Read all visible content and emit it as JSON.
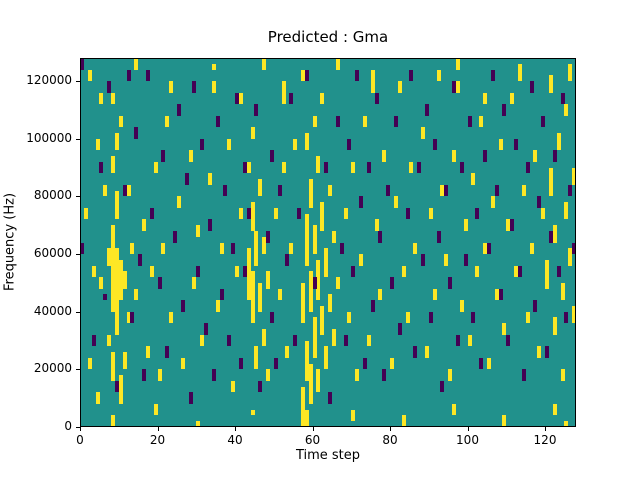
{
  "chart_data": {
    "type": "heatmap",
    "title": "Predicted : Gma",
    "xlabel": "Time step",
    "ylabel": "Frequency (Hz)",
    "xlim": [
      0,
      128
    ],
    "ylim": [
      0,
      128000
    ],
    "x_ticks": [
      0,
      20,
      40,
      60,
      80,
      100,
      120
    ],
    "x_tick_labels": [
      "0",
      "20",
      "40",
      "60",
      "80",
      "100",
      "120"
    ],
    "y_ticks": [
      0,
      20000,
      40000,
      60000,
      80000,
      100000,
      120000
    ],
    "y_tick_labels": [
      "0",
      "20000",
      "40000",
      "60000",
      "80000",
      "100000",
      "120000"
    ],
    "n_cols": 128,
    "n_rows": 64,
    "row_height_hz": 2000,
    "grid": false,
    "legend": "none",
    "colors": {
      "background": "#21918c",
      "high": "#fde725",
      "low": "#440154"
    },
    "cells_high": [
      [
        1,
        36,
        37
      ],
      [
        2,
        10,
        11
      ],
      [
        2,
        60,
        61
      ],
      [
        3,
        26,
        27
      ],
      [
        4,
        4,
        5
      ],
      [
        4,
        48,
        49
      ],
      [
        5,
        24,
        25
      ],
      [
        5,
        56,
        57
      ],
      [
        6,
        40,
        41
      ],
      [
        7,
        14,
        15
      ],
      [
        7,
        28,
        30
      ],
      [
        8,
        0,
        1
      ],
      [
        8,
        8,
        12
      ],
      [
        8,
        20,
        34
      ],
      [
        8,
        44,
        46
      ],
      [
        8,
        56,
        57
      ],
      [
        9,
        16,
        30
      ],
      [
        9,
        36,
        40
      ],
      [
        9,
        48,
        50
      ],
      [
        10,
        4,
        8
      ],
      [
        10,
        22,
        28
      ],
      [
        10,
        52,
        53
      ],
      [
        11,
        10,
        12
      ],
      [
        11,
        24,
        26
      ],
      [
        12,
        18,
        19
      ],
      [
        12,
        40,
        41
      ],
      [
        13,
        30,
        31
      ],
      [
        14,
        22,
        23
      ],
      [
        14,
        62,
        63
      ],
      [
        16,
        34,
        35
      ],
      [
        17,
        12,
        13
      ],
      [
        18,
        26,
        27
      ],
      [
        19,
        2,
        3
      ],
      [
        19,
        44,
        45
      ],
      [
        20,
        8,
        9
      ],
      [
        21,
        30,
        31
      ],
      [
        22,
        52,
        53
      ],
      [
        23,
        18,
        19
      ],
      [
        23,
        58,
        59
      ],
      [
        25,
        38,
        39
      ],
      [
        26,
        10,
        11
      ],
      [
        28,
        46,
        47
      ],
      [
        29,
        24,
        25
      ],
      [
        30,
        0,
        0
      ],
      [
        30,
        33,
        34
      ],
      [
        31,
        14,
        15
      ],
      [
        33,
        42,
        43
      ],
      [
        34,
        58,
        59
      ],
      [
        34,
        62,
        62
      ],
      [
        35,
        20,
        21
      ],
      [
        36,
        30,
        31
      ],
      [
        38,
        48,
        49
      ],
      [
        39,
        6,
        7
      ],
      [
        40,
        26,
        27
      ],
      [
        41,
        36,
        37
      ],
      [
        41,
        56,
        57
      ],
      [
        43,
        22,
        30
      ],
      [
        43,
        44,
        45
      ],
      [
        44,
        2,
        2
      ],
      [
        44,
        18,
        26
      ],
      [
        44,
        34,
        38
      ],
      [
        44,
        50,
        51
      ],
      [
        45,
        10,
        13
      ],
      [
        45,
        28,
        33
      ],
      [
        46,
        20,
        24
      ],
      [
        46,
        40,
        42
      ],
      [
        47,
        14,
        16
      ],
      [
        47,
        30,
        32
      ],
      [
        47,
        62,
        63
      ],
      [
        48,
        8,
        9
      ],
      [
        48,
        24,
        26
      ],
      [
        50,
        36,
        37
      ],
      [
        51,
        22,
        23
      ],
      [
        52,
        44,
        45
      ],
      [
        52,
        56,
        59
      ],
      [
        53,
        12,
        13
      ],
      [
        54,
        30,
        31
      ],
      [
        55,
        48,
        49
      ],
      [
        57,
        0,
        6
      ],
      [
        57,
        18,
        24
      ],
      [
        57,
        60,
        61
      ],
      [
        58,
        0,
        2
      ],
      [
        58,
        8,
        14
      ],
      [
        58,
        28,
        36
      ],
      [
        58,
        48,
        50
      ],
      [
        59,
        4,
        10
      ],
      [
        59,
        20,
        26
      ],
      [
        59,
        38,
        42
      ],
      [
        60,
        12,
        18
      ],
      [
        60,
        30,
        34
      ],
      [
        60,
        52,
        53
      ],
      [
        61,
        6,
        9
      ],
      [
        61,
        22,
        28
      ],
      [
        61,
        44,
        46
      ],
      [
        62,
        16,
        20
      ],
      [
        62,
        34,
        38
      ],
      [
        62,
        56,
        57
      ],
      [
        63,
        10,
        13
      ],
      [
        63,
        26,
        30
      ],
      [
        64,
        20,
        22
      ],
      [
        64,
        40,
        41
      ],
      [
        65,
        14,
        16
      ],
      [
        65,
        32,
        33
      ],
      [
        66,
        24,
        25
      ],
      [
        66,
        62,
        63
      ],
      [
        68,
        36,
        37
      ],
      [
        69,
        18,
        19
      ],
      [
        70,
        1,
        2
      ],
      [
        70,
        44,
        45
      ],
      [
        71,
        8,
        9
      ],
      [
        72,
        28,
        29
      ],
      [
        73,
        52,
        53
      ],
      [
        74,
        14,
        15
      ],
      [
        75,
        58,
        61
      ],
      [
        76,
        34,
        35
      ],
      [
        77,
        22,
        23
      ],
      [
        78,
        46,
        47
      ],
      [
        80,
        10,
        11
      ],
      [
        81,
        38,
        39
      ],
      [
        82,
        58,
        59
      ],
      [
        83,
        0,
        1
      ],
      [
        83,
        26,
        27
      ],
      [
        84,
        18,
        19
      ],
      [
        85,
        44,
        45
      ],
      [
        86,
        30,
        31
      ],
      [
        88,
        50,
        51
      ],
      [
        89,
        12,
        13
      ],
      [
        90,
        36,
        37
      ],
      [
        91,
        22,
        23
      ],
      [
        92,
        60,
        61
      ],
      [
        93,
        40,
        41
      ],
      [
        94,
        28,
        29
      ],
      [
        95,
        8,
        9
      ],
      [
        96,
        2,
        3
      ],
      [
        96,
        46,
        47
      ],
      [
        97,
        58,
        59
      ],
      [
        97,
        62,
        63
      ],
      [
        98,
        20,
        21
      ],
      [
        99,
        34,
        35
      ],
      [
        100,
        14,
        15
      ],
      [
        101,
        42,
        43
      ],
      [
        102,
        26,
        27
      ],
      [
        103,
        52,
        53
      ],
      [
        104,
        30,
        31
      ],
      [
        104,
        56,
        57
      ],
      [
        105,
        10,
        11
      ],
      [
        106,
        38,
        39
      ],
      [
        107,
        22,
        23
      ],
      [
        108,
        48,
        49
      ],
      [
        109,
        0,
        1
      ],
      [
        109,
        16,
        17
      ],
      [
        110,
        34,
        35
      ],
      [
        111,
        56,
        57
      ],
      [
        112,
        26,
        27
      ],
      [
        113,
        60,
        62
      ],
      [
        114,
        40,
        41
      ],
      [
        115,
        18,
        19
      ],
      [
        116,
        30,
        31
      ],
      [
        117,
        46,
        47
      ],
      [
        118,
        12,
        13
      ],
      [
        119,
        36,
        37
      ],
      [
        120,
        24,
        28
      ],
      [
        121,
        40,
        44
      ],
      [
        121,
        58,
        60
      ],
      [
        122,
        2,
        3
      ],
      [
        122,
        16,
        18
      ],
      [
        122,
        32,
        34
      ],
      [
        123,
        48,
        50
      ],
      [
        124,
        8,
        9
      ],
      [
        124,
        22,
        24
      ],
      [
        125,
        0,
        0
      ],
      [
        125,
        36,
        38
      ],
      [
        125,
        54,
        55
      ],
      [
        126,
        28,
        30
      ],
      [
        126,
        60,
        62
      ],
      [
        127,
        18,
        20
      ],
      [
        127,
        42,
        44
      ]
    ],
    "cells_low": [
      [
        0,
        30,
        31
      ],
      [
        0,
        62,
        63
      ],
      [
        3,
        14,
        15
      ],
      [
        5,
        44,
        45
      ],
      [
        6,
        22,
        22
      ],
      [
        7,
        58,
        59
      ],
      [
        9,
        6,
        7
      ],
      [
        11,
        40,
        41
      ],
      [
        12,
        60,
        61
      ],
      [
        13,
        18,
        19
      ],
      [
        14,
        50,
        51
      ],
      [
        15,
        28,
        29
      ],
      [
        16,
        8,
        9
      ],
      [
        17,
        60,
        61
      ],
      [
        18,
        36,
        37
      ],
      [
        20,
        24,
        25
      ],
      [
        21,
        46,
        47
      ],
      [
        22,
        12,
        13
      ],
      [
        24,
        32,
        33
      ],
      [
        25,
        54,
        55
      ],
      [
        26,
        20,
        21
      ],
      [
        27,
        42,
        43
      ],
      [
        28,
        4,
        5
      ],
      [
        29,
        58,
        59
      ],
      [
        30,
        26,
        27
      ],
      [
        31,
        48,
        49
      ],
      [
        32,
        16,
        17
      ],
      [
        33,
        34,
        35
      ],
      [
        34,
        8,
        9
      ],
      [
        35,
        52,
        53
      ],
      [
        36,
        22,
        23
      ],
      [
        37,
        40,
        41
      ],
      [
        38,
        14,
        15
      ],
      [
        39,
        30,
        31
      ],
      [
        40,
        56,
        57
      ],
      [
        41,
        10,
        11
      ],
      [
        42,
        26,
        27
      ],
      [
        42,
        44,
        45
      ],
      [
        43,
        36,
        37
      ],
      [
        45,
        54,
        55
      ],
      [
        46,
        6,
        7
      ],
      [
        48,
        32,
        33
      ],
      [
        49,
        18,
        19
      ],
      [
        49,
        46,
        47
      ],
      [
        50,
        10,
        11
      ],
      [
        51,
        40,
        41
      ],
      [
        53,
        28,
        29
      ],
      [
        54,
        56,
        57
      ],
      [
        55,
        14,
        15
      ],
      [
        56,
        36,
        37
      ],
      [
        58,
        60,
        61
      ],
      [
        60,
        24,
        25
      ],
      [
        63,
        44,
        45
      ],
      [
        64,
        4,
        5
      ],
      [
        66,
        52,
        53
      ],
      [
        67,
        30,
        31
      ],
      [
        68,
        14,
        15
      ],
      [
        69,
        48,
        49
      ],
      [
        70,
        26,
        27
      ],
      [
        71,
        60,
        61
      ],
      [
        72,
        38,
        39
      ],
      [
        73,
        10,
        11
      ],
      [
        74,
        44,
        45
      ],
      [
        75,
        20,
        21
      ],
      [
        76,
        56,
        57
      ],
      [
        77,
        32,
        33
      ],
      [
        78,
        8,
        9
      ],
      [
        79,
        40,
        41
      ],
      [
        80,
        24,
        25
      ],
      [
        81,
        52,
        53
      ],
      [
        82,
        16,
        17
      ],
      [
        84,
        36,
        37
      ],
      [
        85,
        60,
        61
      ],
      [
        86,
        12,
        13
      ],
      [
        87,
        44,
        45
      ],
      [
        88,
        28,
        29
      ],
      [
        89,
        54,
        55
      ],
      [
        90,
        18,
        19
      ],
      [
        91,
        48,
        49
      ],
      [
        92,
        32,
        33
      ],
      [
        93,
        6,
        7
      ],
      [
        94,
        40,
        41
      ],
      [
        95,
        24,
        25
      ],
      [
        96,
        58,
        59
      ],
      [
        97,
        14,
        15
      ],
      [
        98,
        44,
        45
      ],
      [
        99,
        28,
        29
      ],
      [
        100,
        52,
        53
      ],
      [
        101,
        18,
        19
      ],
      [
        102,
        36,
        37
      ],
      [
        103,
        10,
        11
      ],
      [
        104,
        46,
        47
      ],
      [
        105,
        30,
        31
      ],
      [
        106,
        60,
        61
      ],
      [
        107,
        40,
        41
      ],
      [
        108,
        22,
        23
      ],
      [
        109,
        54,
        55
      ],
      [
        110,
        14,
        15
      ],
      [
        111,
        34,
        35
      ],
      [
        112,
        48,
        49
      ],
      [
        113,
        26,
        27
      ],
      [
        114,
        8,
        9
      ],
      [
        115,
        44,
        45
      ],
      [
        116,
        58,
        59
      ],
      [
        117,
        20,
        21
      ],
      [
        118,
        38,
        39
      ],
      [
        119,
        52,
        53
      ],
      [
        120,
        12,
        13
      ],
      [
        121,
        32,
        33
      ],
      [
        122,
        46,
        47
      ],
      [
        123,
        26,
        27
      ],
      [
        124,
        56,
        57
      ],
      [
        125,
        18,
        19
      ],
      [
        126,
        40,
        41
      ],
      [
        127,
        30,
        31
      ]
    ]
  }
}
